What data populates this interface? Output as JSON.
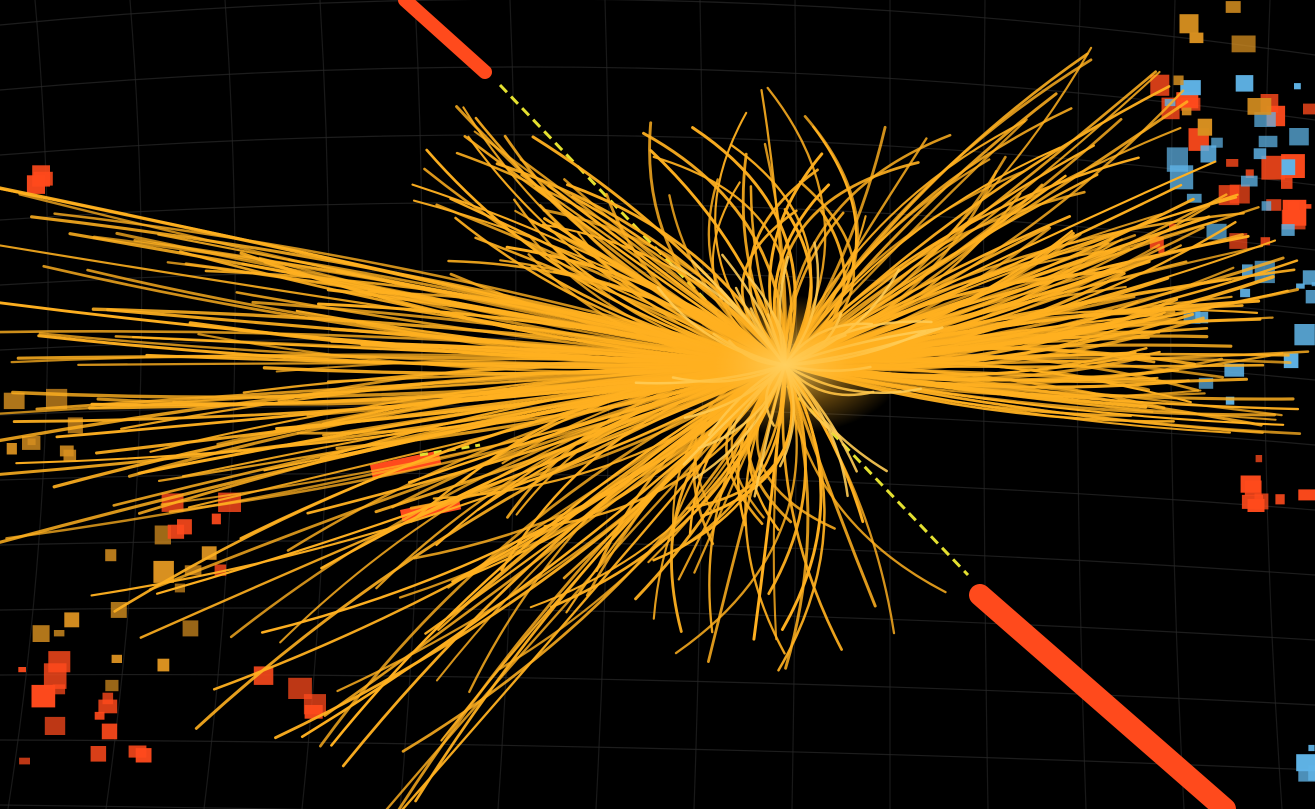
{
  "scene": {
    "description_visible_text": "",
    "palette": {
      "background": "#000000",
      "grid": "#2a2a2a",
      "track": "#ffb020",
      "track_glow": "#ffcc55",
      "muon_track": "#e4e030",
      "calorimeter_red": "#ff4a1c",
      "calorimeter_orange": "#d89020",
      "calorimeter_blue": "#5fb3e6"
    }
  }
}
